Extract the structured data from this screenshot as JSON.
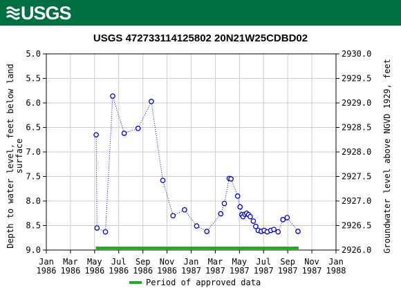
{
  "header": {
    "logo_text": "USGS",
    "color": "#006f41"
  },
  "chart_data": {
    "type": "scatter",
    "title": "USGS 472733114125802 20N21W25CDBD02",
    "ylabel": "Depth to water level, feet below land surface",
    "ylabel_lines": [
      "Depth to water level, feet below land",
      "surface"
    ],
    "y2label": "Groundwater level above NGVD 1929, feet",
    "ylim": [
      9.0,
      5.0
    ],
    "y2lim": [
      2926.0,
      2930.0
    ],
    "yticks": [
      "5.0",
      "5.5",
      "6.0",
      "6.5",
      "7.0",
      "7.5",
      "8.0",
      "8.5",
      "9.0"
    ],
    "y2ticks": [
      "2930.0",
      "2929.5",
      "2929.0",
      "2928.5",
      "2928.0",
      "2927.5",
      "2927.0",
      "2926.5",
      "2926.0"
    ],
    "xlim_months": [
      0,
      24
    ],
    "xticks": [
      {
        "m": 0,
        "l1": "Jan",
        "l2": "1986"
      },
      {
        "m": 2,
        "l1": "Mar",
        "l2": "1986"
      },
      {
        "m": 4,
        "l1": "May",
        "l2": "1986"
      },
      {
        "m": 6,
        "l1": "Jul",
        "l2": "1986"
      },
      {
        "m": 8,
        "l1": "Sep",
        "l2": "1986"
      },
      {
        "m": 10,
        "l1": "Nov",
        "l2": "1986"
      },
      {
        "m": 12,
        "l1": "Jan",
        "l2": "1987"
      },
      {
        "m": 14,
        "l1": "Mar",
        "l2": "1987"
      },
      {
        "m": 16,
        "l1": "May",
        "l2": "1987"
      },
      {
        "m": 18,
        "l1": "Jul",
        "l2": "1987"
      },
      {
        "m": 20,
        "l1": "Sep",
        "l2": "1987"
      },
      {
        "m": 22,
        "l1": "Nov",
        "l2": "1987"
      },
      {
        "m": 24,
        "l1": "Jan",
        "l2": "1988"
      }
    ],
    "series": [
      {
        "points": [
          {
            "m": 4.13,
            "y": 6.65
          },
          {
            "m": 4.2,
            "y": 8.55
          },
          {
            "m": 4.9,
            "y": 8.63
          },
          {
            "m": 5.5,
            "y": 5.86
          },
          {
            "m": 6.45,
            "y": 6.62
          },
          {
            "m": 7.6,
            "y": 6.52
          },
          {
            "m": 8.7,
            "y": 5.97
          },
          {
            "m": 9.65,
            "y": 7.58
          },
          {
            "m": 10.5,
            "y": 8.3
          },
          {
            "m": 11.45,
            "y": 8.18
          },
          {
            "m": 12.45,
            "y": 8.51
          },
          {
            "m": 13.3,
            "y": 8.62
          },
          {
            "m": 14.45,
            "y": 8.26
          },
          {
            "m": 14.75,
            "y": 8.05
          },
          {
            "m": 15.15,
            "y": 7.54
          },
          {
            "m": 15.3,
            "y": 7.55
          },
          {
            "m": 15.85,
            "y": 7.9
          },
          {
            "m": 16.05,
            "y": 8.12
          },
          {
            "m": 16.2,
            "y": 8.28
          },
          {
            "m": 16.3,
            "y": 8.32
          },
          {
            "m": 16.45,
            "y": 8.27
          },
          {
            "m": 16.6,
            "y": 8.25
          },
          {
            "m": 16.75,
            "y": 8.28
          },
          {
            "m": 16.9,
            "y": 8.32
          },
          {
            "m": 17.15,
            "y": 8.41
          },
          {
            "m": 17.35,
            "y": 8.52
          },
          {
            "m": 17.55,
            "y": 8.6
          },
          {
            "m": 17.8,
            "y": 8.62
          },
          {
            "m": 18.05,
            "y": 8.6
          },
          {
            "m": 18.3,
            "y": 8.63
          },
          {
            "m": 18.6,
            "y": 8.6
          },
          {
            "m": 18.85,
            "y": 8.58
          },
          {
            "m": 19.2,
            "y": 8.63
          },
          {
            "m": 19.6,
            "y": 8.38
          },
          {
            "m": 19.95,
            "y": 8.34
          },
          {
            "m": 20.85,
            "y": 8.62
          }
        ],
        "color": "#0000cc"
      }
    ],
    "approved_period": {
      "start_m": 4.1,
      "end_m": 20.9,
      "color": "#22aa22"
    },
    "legend": {
      "label": "Period of approved data",
      "placement": "bottom-center"
    },
    "grid": true
  }
}
